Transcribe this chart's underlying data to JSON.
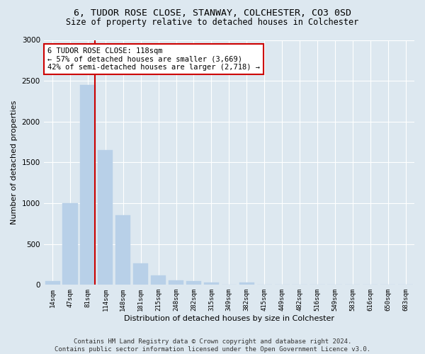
{
  "title1": "6, TUDOR ROSE CLOSE, STANWAY, COLCHESTER, CO3 0SD",
  "title2": "Size of property relative to detached houses in Colchester",
  "xlabel": "Distribution of detached houses by size in Colchester",
  "ylabel": "Number of detached properties",
  "categories": [
    "14sqm",
    "47sqm",
    "81sqm",
    "114sqm",
    "148sqm",
    "181sqm",
    "215sqm",
    "248sqm",
    "282sqm",
    "315sqm",
    "349sqm",
    "382sqm",
    "415sqm",
    "449sqm",
    "482sqm",
    "516sqm",
    "549sqm",
    "583sqm",
    "616sqm",
    "650sqm",
    "683sqm"
  ],
  "values": [
    50,
    1000,
    2450,
    1650,
    850,
    260,
    120,
    55,
    50,
    30,
    0,
    30,
    0,
    0,
    0,
    0,
    0,
    0,
    0,
    0,
    0
  ],
  "bar_color": "#b8d0e8",
  "bar_edge_color": "#b8d0e8",
  "vline_color": "#cc0000",
  "annotation_text": "6 TUDOR ROSE CLOSE: 118sqm\n← 57% of detached houses are smaller (3,669)\n42% of semi-detached houses are larger (2,718) →",
  "annotation_box_color": "#ffffff",
  "annotation_box_edge": "#cc0000",
  "ylim": [
    0,
    3000
  ],
  "yticks": [
    0,
    500,
    1000,
    1500,
    2000,
    2500,
    3000
  ],
  "bg_color": "#dde8f0",
  "plot_bg_color": "#dde8f0",
  "footer1": "Contains HM Land Registry data © Crown copyright and database right 2024.",
  "footer2": "Contains public sector information licensed under the Open Government Licence v3.0.",
  "title1_fontsize": 9.5,
  "title2_fontsize": 8.5,
  "xlabel_fontsize": 8,
  "ylabel_fontsize": 8,
  "annotation_fontsize": 7.5,
  "footer_fontsize": 6.5
}
